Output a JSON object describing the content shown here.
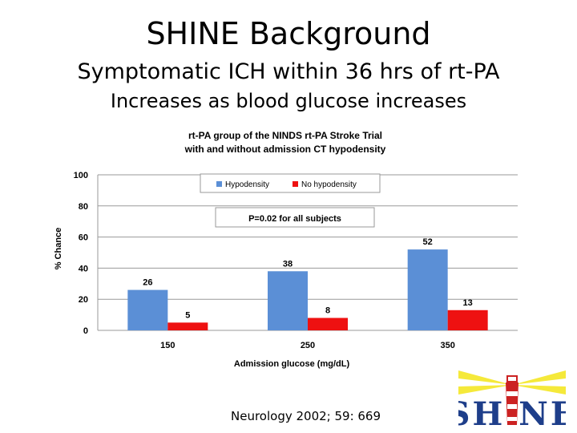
{
  "slide": {
    "title": "SHINE Background",
    "subtitle": "Symptomatic ICH within 36 hrs of rt-PA",
    "subtitle2": "Increases as blood glucose increases",
    "citation": "Neurology 2002; 59: 669",
    "logo_text": "SH NE"
  },
  "chart_data": {
    "type": "bar",
    "title_line1": "rt-PA group of the NINDS rt-PA Stroke Trial",
    "title_line2": "with and without admission CT hypodensity",
    "xlabel": "Admission glucose (mg/dL)",
    "ylabel": "% Chance",
    "categories": [
      "150",
      "250",
      "350"
    ],
    "series": [
      {
        "name": "Hypodensity",
        "values": [
          26,
          38,
          52
        ],
        "color": "#5b8fd6"
      },
      {
        "name": "No hypodensity",
        "values": [
          5,
          8,
          13
        ],
        "color": "#ee1111"
      }
    ],
    "ylim": [
      0,
      100
    ],
    "yticks": [
      "0",
      "20",
      "40",
      "60",
      "80",
      "100"
    ],
    "annotation": "P=0.02 for all subjects",
    "grid": true,
    "legend": "top"
  }
}
